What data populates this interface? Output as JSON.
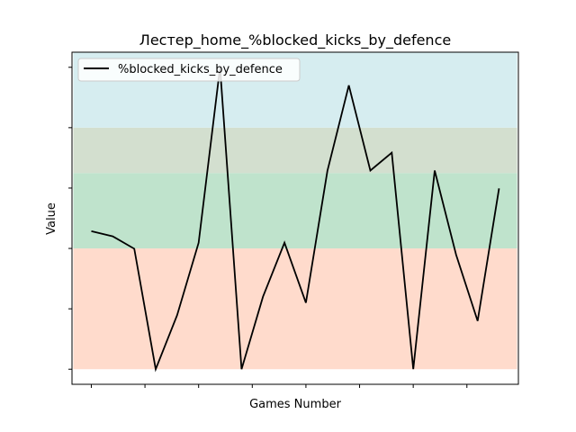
{
  "chart_data": {
    "type": "line",
    "title": "Лестер_home_%blocked_kicks_by_defence",
    "xlabel": "Games Number",
    "ylabel": "Value",
    "legend": {
      "placement": "top-left",
      "entries": [
        "%blocked_kicks_by_defence"
      ]
    },
    "grid": false,
    "xlim": [
      -0.9,
      19.9
    ],
    "ylim": [
      -0.05,
      1.05
    ],
    "x": [
      0,
      1,
      2,
      3,
      4,
      5,
      6,
      7,
      8,
      9,
      10,
      11,
      12,
      13,
      14,
      15,
      16,
      17,
      18,
      19
    ],
    "series": [
      {
        "name": "%blocked_kicks_by_defence",
        "color": "#000000",
        "values": [
          0.457,
          0.44,
          0.399,
          0.0,
          0.179,
          0.419,
          1.0,
          0.0,
          0.24,
          0.419,
          0.22,
          0.657,
          0.94,
          0.658,
          0.717,
          0.0,
          0.658,
          0.379,
          0.16,
          0.599
        ]
      }
    ],
    "bands": [
      {
        "from": 0.0,
        "to": 0.4,
        "color": "#ffdbcc"
      },
      {
        "from": 0.4,
        "to": 0.65,
        "color": "#bfe3cc"
      },
      {
        "from": 0.65,
        "to": 0.8,
        "color": "#d3dfcf"
      },
      {
        "from": 0.8,
        "to": 1.05,
        "color": "#d6edf0"
      }
    ]
  }
}
